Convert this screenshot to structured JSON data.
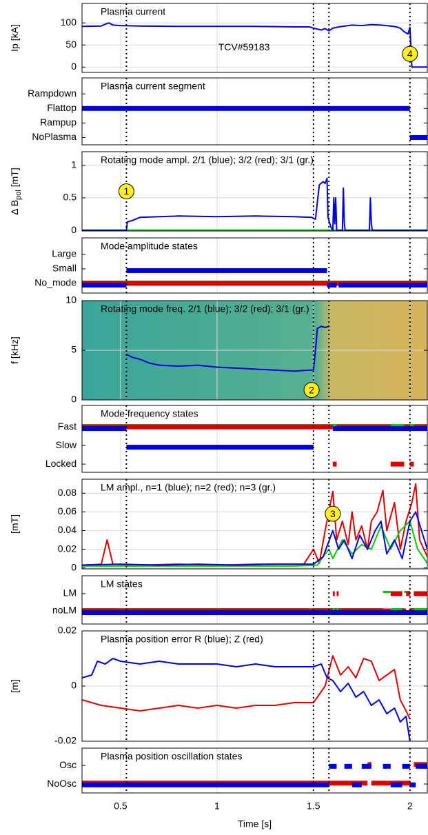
{
  "chart_data": [
    {
      "type": "line",
      "title": "Plasma current",
      "ylabel": "Ip [kA]",
      "xlim": [
        0.3,
        2.09
      ],
      "xticks": [
        0.5,
        1,
        1.5,
        2
      ],
      "ylim": [
        -12,
        144
      ],
      "yticks": [
        0,
        50,
        100
      ],
      "grid": true,
      "vlines": [
        0.53,
        1.5,
        1.58,
        2.0
      ],
      "annotations": [
        {
          "text": "TCV#59183",
          "x": 1.14,
          "y": 45,
          "circled": false
        },
        {
          "text": "4",
          "x": 2.0,
          "y": 30,
          "circled": true
        }
      ],
      "series": [
        {
          "color": "#0000dd",
          "x": [
            0.3,
            0.4,
            0.42,
            0.44,
            0.46,
            0.5,
            0.6,
            0.8,
            1.0,
            1.2,
            1.4,
            1.48,
            1.5,
            1.52,
            1.54,
            1.56,
            1.58,
            1.6,
            1.62,
            1.65,
            1.7,
            1.75,
            1.8,
            1.85,
            1.9,
            1.93,
            1.95,
            1.97,
            1.99,
            2.0,
            2.01,
            2.09
          ],
          "values": [
            92,
            93,
            97,
            100,
            95,
            94,
            93,
            92,
            92,
            92,
            91,
            91,
            88,
            86,
            84,
            87,
            82,
            88,
            90,
            92,
            95,
            94,
            96,
            95,
            93,
            91,
            88,
            80,
            75,
            90,
            0,
            0
          ]
        }
      ]
    },
    {
      "type": "state",
      "title": "Plasma current segment",
      "xlim": [
        0.3,
        2.09
      ],
      "xticks": [
        0.5,
        1,
        1.5,
        2
      ],
      "ylim": [
        -0.5,
        4.1
      ],
      "yticks": [
        {
          "value": 0,
          "label": "NoPlasma"
        },
        {
          "value": 1,
          "label": "Rampup"
        },
        {
          "value": 2,
          "label": "Flattop"
        },
        {
          "value": 3,
          "label": "Rampdown"
        }
      ],
      "vlines": [
        0.53,
        1.5,
        1.58,
        2.0
      ],
      "series": [
        {
          "color": "#0000dd",
          "x": [
            0.3,
            2.0,
            2.09
          ],
          "values": [
            2,
            0,
            null
          ]
        }
      ]
    },
    {
      "type": "line",
      "title": "Rotating mode ampl. 2/1 (blue); 3/2 (red); 3/1 (gr.)",
      "ylabel": "Δ B",
      "ylabel_sub": "pol",
      "ylabel_unit": "[mT]",
      "xlim": [
        0.3,
        2.09
      ],
      "xticks": [
        0.5,
        1,
        1.5,
        2
      ],
      "ylim": [
        -0.01,
        1.21
      ],
      "yticks": [
        0,
        0.5,
        1
      ],
      "grid": true,
      "vlines": [
        0.53,
        1.5,
        1.58,
        2.0
      ],
      "annotations": [
        {
          "text": "1",
          "x": 0.53,
          "y": 0.6,
          "circled": true
        }
      ],
      "series": [
        {
          "color": "#dd0000",
          "x": [
            0.3,
            2.09
          ],
          "values": [
            0,
            0
          ]
        },
        {
          "color": "#00cc00",
          "x": [
            0.3,
            2.09
          ],
          "values": [
            0.005,
            0.005
          ]
        },
        {
          "color": "#0000dd",
          "x": [
            0.3,
            0.53,
            0.535,
            0.56,
            0.6,
            0.7,
            0.8,
            1.0,
            1.2,
            1.4,
            1.49,
            1.51,
            1.53,
            1.55,
            1.56,
            1.57,
            1.575,
            1.59,
            1.6,
            1.605,
            1.61,
            1.615,
            1.62,
            1.65,
            1.655,
            1.66,
            1.665,
            1.79,
            1.795,
            1.8,
            1.805,
            2.09
          ],
          "values": [
            0,
            0,
            0.13,
            0.15,
            0.2,
            0.21,
            0.22,
            0.21,
            0.22,
            0.21,
            0.2,
            0.17,
            0.7,
            0.75,
            0.72,
            0.8,
            0.2,
            0.05,
            0,
            0.5,
            0.1,
            0.5,
            0,
            0,
            0.65,
            0.1,
            0,
            0,
            0.5,
            0.1,
            0,
            0
          ]
        }
      ]
    },
    {
      "type": "state",
      "title": "Mode amplitude states",
      "xlim": [
        0.3,
        2.09
      ],
      "xticks": [
        0.5,
        1,
        1.5,
        2
      ],
      "ylim": [
        -0.67,
        3.14
      ],
      "yticks": [
        {
          "value": 0,
          "label": "No_mode"
        },
        {
          "value": 1,
          "label": "Small"
        },
        {
          "value": 2,
          "label": "Large"
        }
      ],
      "vlines": [
        0.53,
        1.5,
        1.58,
        2.0
      ],
      "series": [
        {
          "color": "#00cc00",
          "x": [
            0.3,
            2.09
          ],
          "values": [
            0,
            null
          ]
        },
        {
          "color": "#dd0000",
          "x": [
            0.3,
            2.09
          ],
          "values": [
            0,
            null
          ]
        },
        {
          "color": "#0000dd",
          "x": [
            0.3,
            0.53,
            1.57,
            1.62,
            1.63,
            2.09
          ],
          "values": [
            0,
            1,
            0,
            null,
            0,
            null
          ]
        }
      ]
    },
    {
      "type": "line",
      "title": "Rotating mode freq. 2/1 (blue); 3/2 (red); 3/1 (gr.)",
      "ylabel": "f [kHz]",
      "spectrogram": true,
      "xlim": [
        0.3,
        2.09
      ],
      "xticks": [
        0.5,
        1,
        1.5,
        2
      ],
      "ylim": [
        0,
        10
      ],
      "yticks": [
        0,
        5,
        10
      ],
      "grid": true,
      "vlines": [
        0.53,
        1.5,
        1.58,
        2.0
      ],
      "annotations": [
        {
          "text": "2",
          "x": 1.49,
          "y": 1.0,
          "circled": true
        }
      ],
      "series": [
        {
          "color": "#0000dd",
          "x": [
            0.53,
            0.56,
            0.6,
            0.65,
            0.7,
            0.8,
            0.9,
            1.0,
            1.1,
            1.2,
            1.3,
            1.4,
            1.48,
            1.5,
            1.51,
            1.52,
            1.54,
            1.56,
            1.58
          ],
          "values": [
            4.6,
            4.3,
            4.1,
            3.7,
            3.5,
            3.4,
            3.5,
            3.3,
            3.2,
            3.1,
            3.0,
            2.9,
            3.0,
            3.0,
            5.0,
            7.2,
            7.4,
            7.3,
            7.4
          ]
        }
      ]
    },
    {
      "type": "state",
      "title": "Mode frequency states",
      "xlim": [
        0.3,
        2.09
      ],
      "xticks": [
        0.5,
        1,
        1.5,
        2
      ],
      "ylim": [
        -0.44,
        3.15
      ],
      "yticks": [
        {
          "value": 0,
          "label": "Locked"
        },
        {
          "value": 1,
          "label": "Slow"
        },
        {
          "value": 2,
          "label": "Fast"
        }
      ],
      "vlines": [
        0.53,
        1.5,
        1.58,
        2.0
      ],
      "series": [
        {
          "color": "#00cc00",
          "x": [
            0.3,
            2.09
          ],
          "values": [
            2,
            null
          ]
        },
        {
          "color": "#dd0000",
          "x": [
            0.3,
            1.6,
            1.62,
            1.9,
            1.97,
            2.0,
            2.02,
            2.09
          ],
          "values": [
            2,
            0,
            2,
            0,
            2,
            0,
            2,
            null
          ]
        },
        {
          "color": "#0000dd",
          "x": [
            0.3,
            0.53,
            1.5,
            1.6,
            2.09
          ],
          "values": [
            2,
            1,
            null,
            2,
            null
          ]
        }
      ]
    },
    {
      "type": "line",
      "title": "LM ampl., n=1 (blue); n=2 (red); n=3 (gr.)",
      "ylabel": "[mT]",
      "xlim": [
        0.3,
        2.09
      ],
      "xticks": [
        0.5,
        1,
        1.5,
        2
      ],
      "ylim": [
        -0.001,
        0.095
      ],
      "yticks": [
        0,
        0.02,
        0.04,
        0.06,
        0.08
      ],
      "grid": true,
      "vlines": [
        0.53,
        1.5,
        1.58,
        2.0
      ],
      "annotations": [
        {
          "text": "3",
          "x": 1.6,
          "y": 0.058,
          "circled": true
        }
      ],
      "series": [
        {
          "color": "#dd0000",
          "x": [
            0.3,
            0.4,
            0.43,
            0.46,
            0.6,
            0.8,
            1.0,
            1.2,
            1.45,
            1.5,
            1.53,
            1.56,
            1.6,
            1.62,
            1.65,
            1.68,
            1.7,
            1.72,
            1.75,
            1.78,
            1.8,
            1.83,
            1.86,
            1.88,
            1.92,
            1.95,
            1.98,
            2.01,
            2.03,
            2.05,
            2.09
          ],
          "values": [
            0.003,
            0.004,
            0.03,
            0.004,
            0.003,
            0.004,
            0.003,
            0.004,
            0.004,
            0.02,
            0.005,
            0.04,
            0.082,
            0.03,
            0.05,
            0.025,
            0.06,
            0.03,
            0.045,
            0.02,
            0.05,
            0.06,
            0.083,
            0.04,
            0.07,
            0.02,
            0.05,
            0.07,
            0.09,
            0.03,
            0.012
          ]
        },
        {
          "color": "#00cc00",
          "x": [
            0.3,
            0.6,
            1.0,
            1.4,
            1.52,
            1.56,
            1.58,
            1.6,
            1.65,
            1.7,
            1.75,
            1.8,
            1.85,
            1.9,
            1.95,
            2.0,
            2.04,
            2.09
          ],
          "values": [
            0.002,
            0.002,
            0.002,
            0.002,
            0.003,
            0.015,
            0.02,
            0.01,
            0.03,
            0.015,
            0.025,
            0.02,
            0.045,
            0.02,
            0.04,
            0.05,
            0.02,
            0.005
          ]
        },
        {
          "color": "#0000dd",
          "x": [
            0.3,
            0.5,
            0.7,
            0.9,
            1.1,
            1.3,
            1.5,
            1.55,
            1.6,
            1.63,
            1.66,
            1.7,
            1.74,
            1.78,
            1.82,
            1.85,
            1.88,
            1.92,
            1.96,
            2.0,
            2.03,
            2.06,
            2.09
          ],
          "values": [
            0.003,
            0.004,
            0.003,
            0.004,
            0.003,
            0.004,
            0.004,
            0.012,
            0.04,
            0.02,
            0.03,
            0.01,
            0.035,
            0.02,
            0.04,
            0.05,
            0.015,
            0.03,
            0.01,
            0.05,
            0.06,
            0.04,
            0.02
          ]
        }
      ]
    },
    {
      "type": "state",
      "title": "LM states",
      "xlim": [
        0.3,
        2.09
      ],
      "xticks": [
        0.5,
        1,
        1.5,
        2
      ],
      "ylim": [
        -0.76,
        2.04
      ],
      "yticks": [
        {
          "value": 0,
          "label": "noLM"
        },
        {
          "value": 1,
          "label": "LM"
        }
      ],
      "vlines": [
        0.53,
        1.5,
        1.58,
        2.0
      ],
      "series": [
        {
          "color": "#00cc00",
          "x": [
            0.3,
            1.86,
            1.9,
            1.97,
            2.0,
            2.09
          ],
          "values": [
            0,
            1,
            0,
            1,
            0,
            null
          ]
        },
        {
          "color": "#dd0000",
          "x": [
            0.3,
            1.6,
            1.61,
            1.62,
            1.63,
            1.9,
            1.96,
            1.98,
            2.0,
            2.02,
            2.09
          ],
          "values": [
            0,
            1,
            0,
            1,
            0,
            1,
            0,
            1,
            0,
            1,
            null
          ]
        },
        {
          "color": "#0000dd",
          "x": [
            0.3,
            1.58,
            2.09
          ],
          "values": [
            0,
            0,
            null
          ]
        }
      ]
    },
    {
      "type": "line",
      "title": "Plasma position error R (blue); Z (red)",
      "ylabel": "[m]",
      "xlim": [
        0.3,
        2.09
      ],
      "xticks": [
        0.5,
        1,
        1.5,
        2
      ],
      "ylim": [
        -0.02,
        0.02
      ],
      "yticks": [
        -0.02,
        0,
        0.02
      ],
      "grid": true,
      "vlines": [
        0.53,
        1.5,
        1.58,
        2.0
      ],
      "series": [
        {
          "color": "#dd0000",
          "x": [
            0.3,
            0.4,
            0.5,
            0.6,
            0.7,
            0.8,
            0.9,
            1.0,
            1.1,
            1.2,
            1.3,
            1.4,
            1.5,
            1.53,
            1.56,
            1.6,
            1.64,
            1.68,
            1.72,
            1.76,
            1.8,
            1.84,
            1.88,
            1.92,
            1.95,
            1.98,
            2.0
          ],
          "values": [
            -0.005,
            -0.007,
            -0.008,
            -0.009,
            -0.008,
            -0.007,
            -0.008,
            -0.007,
            -0.008,
            -0.007,
            -0.007,
            -0.006,
            -0.006,
            -0.003,
            0.0,
            0.011,
            0.004,
            0.007,
            0.003,
            0.01,
            0.009,
            0.002,
            0.004,
            0.006,
            -0.005,
            -0.009,
            -0.012
          ]
        },
        {
          "color": "#0000dd",
          "x": [
            0.3,
            0.35,
            0.38,
            0.42,
            0.46,
            0.5,
            0.6,
            0.7,
            0.8,
            0.9,
            1.0,
            1.1,
            1.2,
            1.3,
            1.4,
            1.5,
            1.54,
            1.57,
            1.6,
            1.64,
            1.68,
            1.72,
            1.76,
            1.8,
            1.84,
            1.88,
            1.92,
            1.95,
            1.98,
            2.0
          ],
          "values": [
            0.003,
            0.004,
            0.009,
            0.008,
            0.01,
            0.009,
            0.008,
            0.009,
            0.008,
            0.008,
            0.008,
            0.007,
            0.008,
            0.007,
            0.007,
            0.007,
            0.008,
            0.003,
            0.002,
            -0.002,
            0.001,
            -0.004,
            -0.002,
            -0.007,
            -0.005,
            -0.01,
            -0.008,
            -0.013,
            -0.011,
            -0.02
          ]
        }
      ]
    },
    {
      "type": "state",
      "title": "Plasma position oscillation states",
      "xlabel": "Time [s]",
      "xlim": [
        0.3,
        2.09
      ],
      "xticks": [
        0.5,
        1,
        1.5,
        2
      ],
      "ylim": [
        -0.48,
        1.93
      ],
      "yticks": [
        {
          "value": 0,
          "label": "NoOsc"
        },
        {
          "value": 1,
          "label": "Osc"
        }
      ],
      "vlines": [
        0.53,
        1.5,
        1.58,
        2.0
      ],
      "series": [
        {
          "color": "#dd0000",
          "x": [
            0.3,
            1.78,
            1.8,
            2.0,
            2.02,
            2.09
          ],
          "values": [
            0,
            1,
            0,
            null,
            1,
            null
          ]
        },
        {
          "color": "#0000dd",
          "x": [
            0.3,
            1.58,
            1.62,
            1.66,
            1.7,
            1.75,
            1.8,
            1.86,
            1.9,
            1.96,
            2.0,
            2.03,
            2.09
          ],
          "values": [
            0,
            1,
            null,
            1,
            0,
            1,
            null,
            1,
            0,
            1,
            0,
            1,
            null
          ]
        }
      ]
    }
  ]
}
